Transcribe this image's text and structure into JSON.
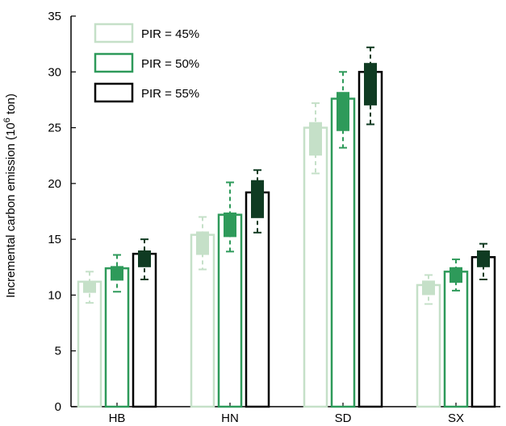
{
  "chart_data": {
    "type": "bar",
    "title": "",
    "xlabel": "",
    "ylabel": "Incremental carbon emission (10",
    "ylabel_sup": "6",
    "ylabel_suffix": " ton)",
    "ylim": [
      0,
      35
    ],
    "yticks": [
      "0",
      "5",
      "10",
      "15",
      "20",
      "25",
      "30",
      "35"
    ],
    "categories": [
      "HB",
      "HN",
      "SD",
      "SX"
    ],
    "legend_position": "top-left",
    "series": [
      {
        "name": "PIR = 45%",
        "color": "#c5e0c8",
        "values": [
          11.2,
          15.4,
          25.0,
          10.9
        ],
        "box_low": [
          10.2,
          13.6,
          22.5,
          10.0
        ],
        "box_high": [
          11.2,
          15.7,
          25.5,
          11.3
        ],
        "whisker_low": [
          9.3,
          12.3,
          20.9,
          9.2
        ],
        "whisker_high": [
          12.1,
          17.0,
          27.2,
          11.8
        ]
      },
      {
        "name": "PIR = 50%",
        "color": "#2e9a5a",
        "values": [
          12.4,
          17.2,
          27.6,
          12.1
        ],
        "box_low": [
          11.3,
          15.2,
          24.7,
          11.1
        ],
        "box_high": [
          12.6,
          17.4,
          28.2,
          12.5
        ],
        "whisker_low": [
          10.3,
          13.9,
          23.2,
          10.4
        ],
        "whisker_high": [
          13.6,
          20.1,
          30.0,
          13.2
        ]
      },
      {
        "name": "PIR = 55%",
        "color": "#0f3b22",
        "values": [
          13.7,
          19.2,
          30.0,
          13.4
        ],
        "box_low": [
          12.5,
          16.9,
          27.0,
          12.5
        ],
        "box_high": [
          14.0,
          20.3,
          30.8,
          14.0
        ],
        "whisker_low": [
          11.4,
          15.6,
          25.3,
          11.4
        ],
        "whisker_high": [
          15.0,
          21.2,
          32.2,
          14.6
        ]
      }
    ]
  }
}
